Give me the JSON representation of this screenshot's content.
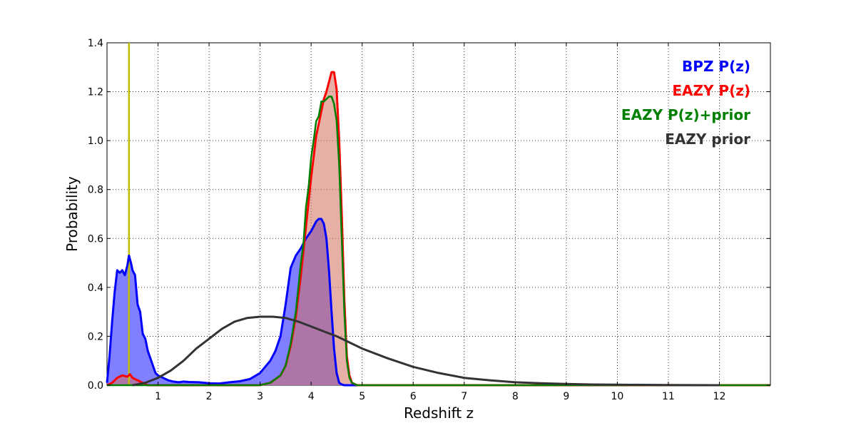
{
  "chart_data": {
    "type": "area",
    "xlabel": "Redshift z",
    "ylabel": "Probability",
    "xlim": [
      0,
      13
    ],
    "ylim": [
      0,
      1.4
    ],
    "xticks": [
      1,
      2,
      3,
      4,
      5,
      6,
      7,
      8,
      9,
      10,
      11,
      12
    ],
    "yticks": [
      0.0,
      0.2,
      0.4,
      0.6,
      0.8,
      1.0,
      1.2,
      1.4
    ],
    "ytick_labels": [
      "0.0",
      "0.2",
      "0.4",
      "0.6",
      "0.8",
      "1.0",
      "1.2",
      "1.4"
    ],
    "grid": true,
    "legend_position": "top-right",
    "vline": {
      "x": 0.43,
      "color": "#bfbf00"
    },
    "series": [
      {
        "name": "BPZ P(z)",
        "color": "#0000ff",
        "fill": "#7f7fff",
        "fill_opacity": 1,
        "line_width": 3,
        "x": [
          0.0,
          0.05,
          0.1,
          0.15,
          0.2,
          0.25,
          0.3,
          0.35,
          0.4,
          0.43,
          0.47,
          0.5,
          0.55,
          0.6,
          0.65,
          0.7,
          0.75,
          0.8,
          0.85,
          0.9,
          0.95,
          1.0,
          1.1,
          1.2,
          1.3,
          1.4,
          1.5,
          1.6,
          1.8,
          2.0,
          2.2,
          2.4,
          2.6,
          2.8,
          3.0,
          3.2,
          3.3,
          3.4,
          3.5,
          3.6,
          3.7,
          3.8,
          3.9,
          4.0,
          4.1,
          4.15,
          4.2,
          4.25,
          4.3,
          4.35,
          4.4,
          4.45,
          4.5,
          4.55,
          4.6,
          4.65,
          4.7,
          4.75,
          4.8,
          5.0,
          6.0,
          8.0,
          10.0,
          12.0,
          13.0
        ],
        "y": [
          0.01,
          0.12,
          0.26,
          0.38,
          0.47,
          0.46,
          0.47,
          0.45,
          0.49,
          0.53,
          0.5,
          0.47,
          0.45,
          0.33,
          0.3,
          0.21,
          0.19,
          0.14,
          0.11,
          0.08,
          0.05,
          0.04,
          0.03,
          0.02,
          0.015,
          0.012,
          0.015,
          0.013,
          0.012,
          0.008,
          0.007,
          0.012,
          0.016,
          0.025,
          0.05,
          0.1,
          0.14,
          0.2,
          0.33,
          0.48,
          0.53,
          0.56,
          0.6,
          0.63,
          0.67,
          0.68,
          0.68,
          0.66,
          0.6,
          0.47,
          0.3,
          0.15,
          0.05,
          0.01,
          0.003,
          0.0,
          0.0,
          0.0,
          0.0,
          0.0,
          0.0,
          0.0,
          0.0,
          0.0,
          0.0
        ]
      },
      {
        "name": "EAZY P(z)",
        "color": "#ff0000",
        "fill": "#d46f5e",
        "fill_opacity": 0.55,
        "line_width": 3,
        "x": [
          0.0,
          0.1,
          0.2,
          0.3,
          0.4,
          0.45,
          0.5,
          0.6,
          0.7,
          0.8,
          1.0,
          3.0,
          3.2,
          3.4,
          3.5,
          3.6,
          3.7,
          3.8,
          3.9,
          4.0,
          4.1,
          4.2,
          4.25,
          4.3,
          4.35,
          4.4,
          4.45,
          4.5,
          4.55,
          4.6,
          4.65,
          4.7,
          4.75,
          4.8,
          4.9,
          5.0,
          13.0
        ],
        "y": [
          0.0,
          0.01,
          0.03,
          0.04,
          0.035,
          0.045,
          0.03,
          0.02,
          0.01,
          0.0,
          0.0,
          0.0,
          0.01,
          0.04,
          0.08,
          0.16,
          0.28,
          0.45,
          0.65,
          0.85,
          1.02,
          1.12,
          1.17,
          1.2,
          1.24,
          1.28,
          1.28,
          1.21,
          1.0,
          0.7,
          0.35,
          0.12,
          0.04,
          0.01,
          0.0,
          0.0,
          0.0
        ]
      },
      {
        "name": "EAZY P(z)+prior",
        "color": "#007f00",
        "fill": "none",
        "fill_opacity": 0,
        "line_width": 2.5,
        "x": [
          0.0,
          3.0,
          3.2,
          3.4,
          3.5,
          3.6,
          3.7,
          3.8,
          3.85,
          3.9,
          3.95,
          4.0,
          4.05,
          4.1,
          4.15,
          4.2,
          4.25,
          4.3,
          4.35,
          4.4,
          4.45,
          4.5,
          4.55,
          4.6,
          4.65,
          4.7,
          4.75,
          4.8,
          4.9,
          5.0,
          13.0
        ],
        "y": [
          0.0,
          0.0,
          0.01,
          0.04,
          0.08,
          0.17,
          0.3,
          0.5,
          0.58,
          0.73,
          0.81,
          0.93,
          1.0,
          1.08,
          1.1,
          1.16,
          1.16,
          1.17,
          1.18,
          1.18,
          1.15,
          1.08,
          0.9,
          0.6,
          0.3,
          0.1,
          0.03,
          0.01,
          0.0,
          0.0,
          0.0
        ]
      },
      {
        "name": "EAZY prior",
        "color": "#333333",
        "fill": "none",
        "fill_opacity": 0,
        "line_width": 3,
        "x": [
          0.5,
          0.75,
          1.0,
          1.25,
          1.5,
          1.75,
          2.0,
          2.25,
          2.5,
          2.75,
          3.0,
          3.25,
          3.5,
          3.75,
          4.0,
          4.25,
          4.5,
          4.75,
          5.0,
          5.5,
          6.0,
          6.5,
          7.0,
          7.5,
          8.0,
          8.5,
          9.0,
          9.5,
          10.0,
          11.0,
          12.0
        ],
        "y": [
          0.0,
          0.01,
          0.03,
          0.06,
          0.1,
          0.15,
          0.19,
          0.23,
          0.26,
          0.275,
          0.28,
          0.28,
          0.275,
          0.26,
          0.24,
          0.22,
          0.2,
          0.175,
          0.15,
          0.11,
          0.075,
          0.05,
          0.03,
          0.02,
          0.012,
          0.008,
          0.005,
          0.003,
          0.002,
          0.001,
          0.0
        ]
      }
    ]
  }
}
